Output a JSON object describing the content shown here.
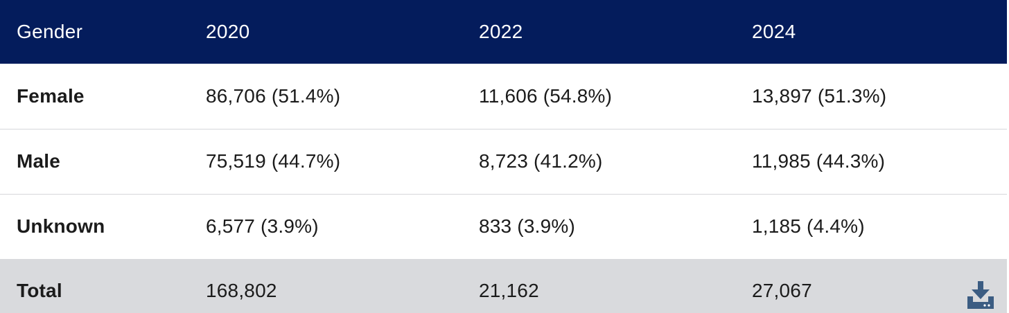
{
  "table": {
    "header": [
      "Gender",
      "2020",
      "2022",
      "2024"
    ],
    "rows": [
      {
        "label": "Female",
        "values": [
          "86,706 (51.4%)",
          "11,606 (54.8%)",
          "13,897 (51.3%)"
        ]
      },
      {
        "label": "Male",
        "values": [
          "75,519 (44.7%)",
          "8,723 (41.2%)",
          "11,985 (44.3%)"
        ]
      },
      {
        "label": "Unknown",
        "values": [
          "6,577 (3.9%)",
          "833 (3.9%)",
          "1,185 (4.4%)"
        ]
      }
    ],
    "total": {
      "label": "Total",
      "values": [
        "168,802",
        "21,162",
        "27,067"
      ]
    }
  },
  "download_icon": "download-icon",
  "colors": {
    "header_bg": "#041c5c",
    "header_text": "#ffffff",
    "total_bg": "#d9dadd",
    "icon": "#3b5c82"
  }
}
